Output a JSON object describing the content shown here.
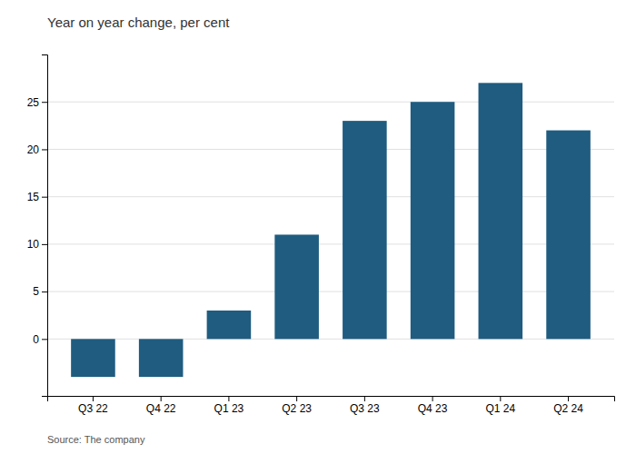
{
  "chart_data": {
    "type": "bar",
    "title": "Year on year change, per cent",
    "source": "Source: The company",
    "categories": [
      "Q3 22",
      "Q4 22",
      "Q1 23",
      "Q2 23",
      "Q3 23",
      "Q4 23",
      "Q1 24",
      "Q2 24"
    ],
    "values": [
      -4.0,
      -4.0,
      3.0,
      11.0,
      23.0,
      25.0,
      27.0,
      22.0
    ],
    "color": "#1f5c80",
    "ylim": [
      -6,
      30
    ],
    "yticks": [
      0,
      5,
      10,
      15,
      20,
      25
    ],
    "grid": true
  }
}
